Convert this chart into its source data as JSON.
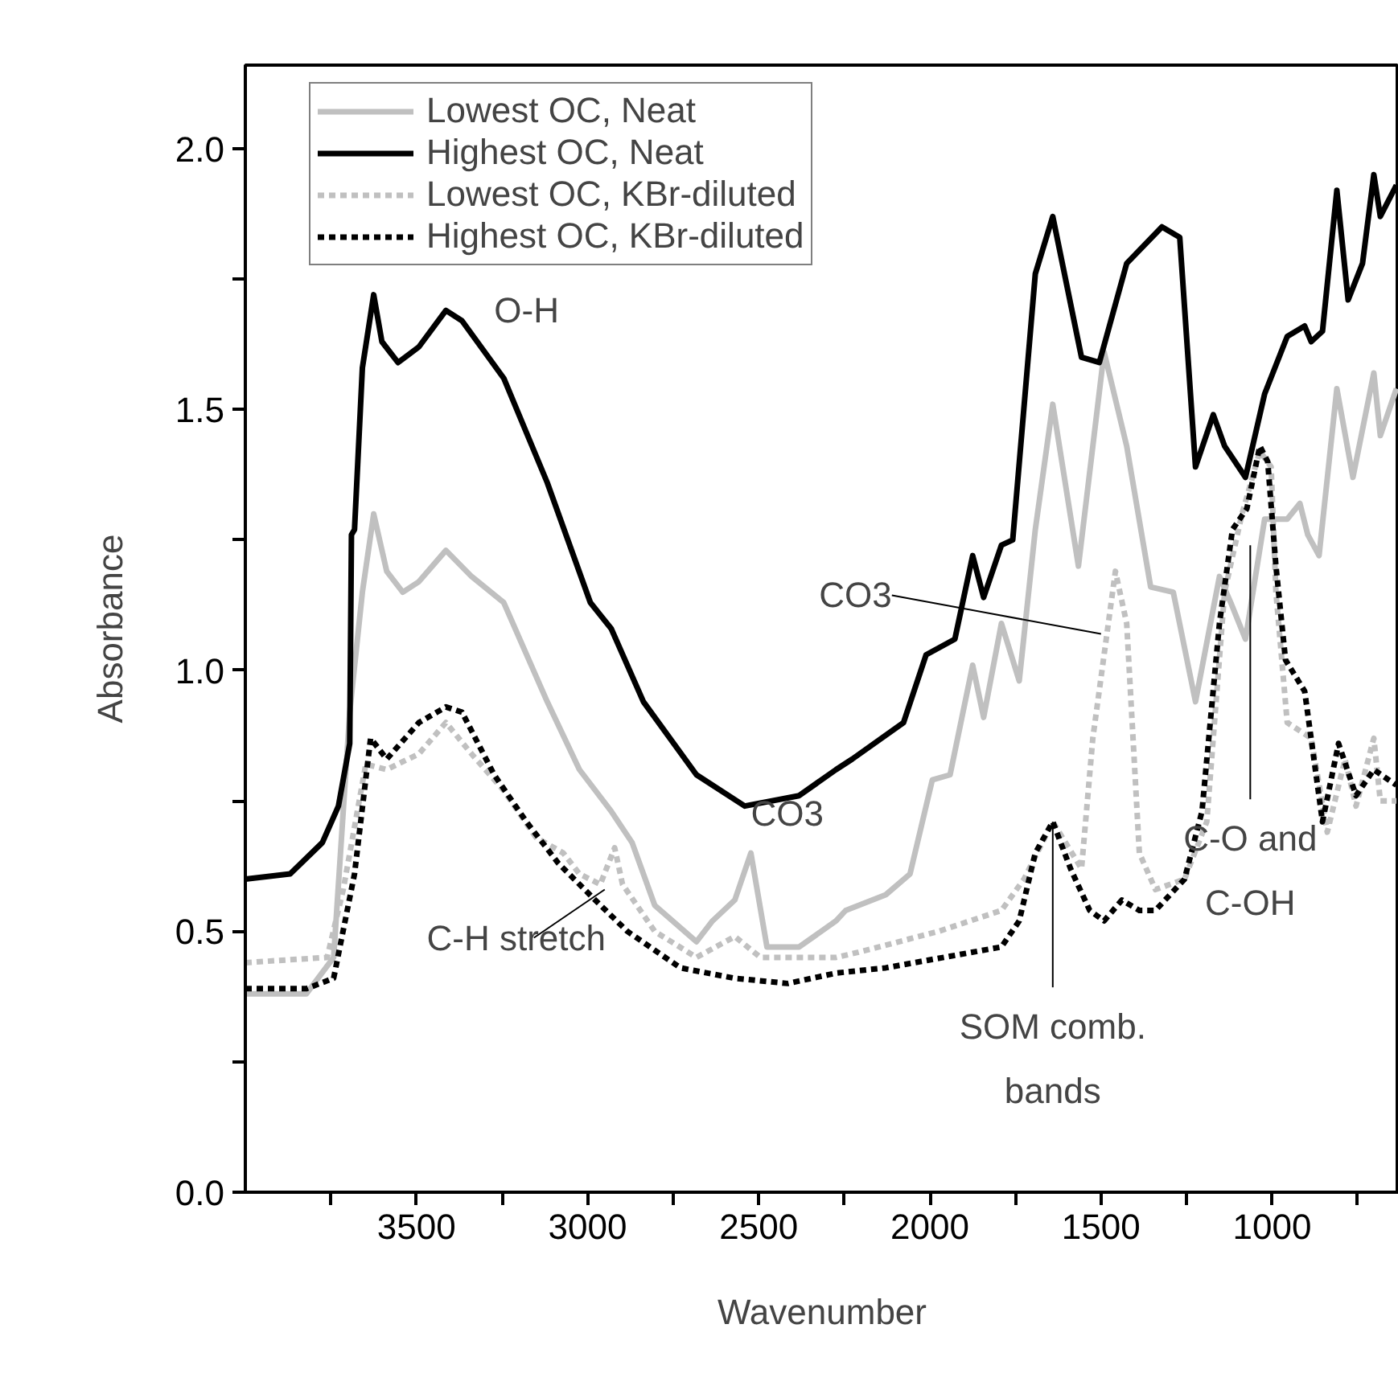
{
  "chart_data": {
    "type": "line",
    "xlabel": "Wavenumber",
    "ylabel": "Absorbance",
    "xlim": [
      4000,
      630
    ],
    "ylim": [
      0,
      2.16
    ],
    "xticks": [
      {
        "value": 3750,
        "label": null
      },
      3500,
      {
        "value": 3250,
        "label": null
      },
      3000,
      {
        "value": 2750,
        "label": null
      },
      2500,
      {
        "value": 2250,
        "label": null
      },
      2000,
      {
        "value": 1750,
        "label": null
      },
      1500,
      {
        "value": 1250,
        "label": null
      },
      1000,
      {
        "value": 750,
        "label": null
      }
    ],
    "yticks": [
      {
        "value": 0,
        "label": "0.0"
      },
      {
        "value": 0.25,
        "label": null
      },
      {
        "value": 0.5,
        "label": "0.5"
      },
      {
        "value": 0.75,
        "label": null
      },
      {
        "value": 1.0,
        "label": "1.0"
      },
      {
        "value": 1.25,
        "label": null
      },
      {
        "value": 1.5,
        "label": "1.5"
      },
      {
        "value": 1.75,
        "label": null
      },
      {
        "value": 2.0,
        "label": "2.0"
      }
    ],
    "grid": false,
    "legend": "top left",
    "series": [
      {
        "name": "Lowest OC, Neat",
        "color": "#c0c0c0",
        "line_style": "solid",
        "x": [
          4000,
          3822,
          3742,
          3695,
          3658,
          3625,
          3587,
          3540,
          3493,
          3414,
          3339,
          3245,
          3118,
          3024,
          2931,
          2870,
          2804,
          2682,
          2635,
          2570,
          2523,
          2476,
          2382,
          2274,
          2246,
          2129,
          2058,
          1993,
          1941,
          1875,
          1843,
          1791,
          1739,
          1692,
          1641,
          1566,
          1491,
          1425,
          1355,
          1289,
          1224,
          1154,
          1121,
          1078,
          1022,
          956,
          919,
          896,
          863,
          811,
          764,
          703,
          684,
          637
        ],
        "values": [
          0.38,
          0.38,
          0.45,
          0.92,
          1.15,
          1.3,
          1.19,
          1.15,
          1.17,
          1.23,
          1.18,
          1.13,
          0.94,
          0.81,
          0.73,
          0.67,
          0.55,
          0.48,
          0.52,
          0.56,
          0.65,
          0.47,
          0.47,
          0.52,
          0.54,
          0.57,
          0.61,
          0.79,
          0.8,
          1.01,
          0.91,
          1.09,
          0.98,
          1.27,
          1.51,
          1.2,
          1.61,
          1.43,
          1.16,
          1.15,
          0.94,
          1.18,
          1.13,
          1.06,
          1.29,
          1.29,
          1.32,
          1.26,
          1.22,
          1.54,
          1.37,
          1.57,
          1.45,
          1.54
        ]
      },
      {
        "name": "Highest OC, Neat",
        "color": "#000000",
        "line_style": "solid",
        "x": [
          4000,
          3869,
          3775,
          3728,
          3695,
          3690,
          3681,
          3658,
          3625,
          3601,
          3554,
          3493,
          3414,
          3367,
          3245,
          3118,
          2992,
          2931,
          2837,
          2682,
          2541,
          2382,
          2274,
          2227,
          2077,
          2011,
          1927,
          1875,
          1843,
          1791,
          1758,
          1692,
          1641,
          1557,
          1505,
          1425,
          1322,
          1270,
          1224,
          1172,
          1139,
          1078,
          1022,
          956,
          905,
          886,
          853,
          811,
          778,
          736,
          703,
          684,
          637
        ],
        "values": [
          0.6,
          0.61,
          0.67,
          0.74,
          0.86,
          1.26,
          1.27,
          1.58,
          1.72,
          1.63,
          1.59,
          1.62,
          1.69,
          1.67,
          1.56,
          1.36,
          1.13,
          1.08,
          0.94,
          0.8,
          0.74,
          0.76,
          0.81,
          0.83,
          0.9,
          1.03,
          1.06,
          1.22,
          1.14,
          1.24,
          1.25,
          1.76,
          1.87,
          1.6,
          1.59,
          1.78,
          1.85,
          1.83,
          1.39,
          1.49,
          1.43,
          1.37,
          1.53,
          1.64,
          1.66,
          1.63,
          1.65,
          1.92,
          1.71,
          1.78,
          1.95,
          1.87,
          1.93
        ]
      },
      {
        "name": "Lowest OC, KBr-diluted",
        "color": "#c0c0c0",
        "line_style": "dashed",
        "x": [
          4000,
          3761,
          3714,
          3648,
          3587,
          3493,
          3414,
          3339,
          3245,
          3151,
          3071,
          3024,
          2963,
          2921,
          2898,
          2804,
          2682,
          2570,
          2495,
          2274,
          2208,
          1974,
          1791,
          1725,
          1641,
          1557,
          1524,
          1458,
          1425,
          1388,
          1341,
          1256,
          1191,
          1139,
          1088,
          1036,
          1003,
          989,
          956,
          886,
          839,
          787,
          755,
          703,
          684,
          637
        ],
        "values": [
          0.44,
          0.45,
          0.58,
          0.82,
          0.81,
          0.84,
          0.9,
          0.84,
          0.77,
          0.68,
          0.65,
          0.61,
          0.59,
          0.66,
          0.59,
          0.5,
          0.45,
          0.49,
          0.45,
          0.45,
          0.46,
          0.5,
          0.54,
          0.6,
          0.71,
          0.62,
          0.87,
          1.19,
          1.09,
          0.65,
          0.58,
          0.6,
          0.71,
          1.15,
          1.3,
          1.42,
          1.39,
          1.15,
          0.9,
          0.87,
          0.69,
          0.83,
          0.74,
          0.87,
          0.75,
          0.75
        ]
      },
      {
        "name": "Highest OC, KBr-diluted",
        "color": "#000000",
        "line_style": "dashed",
        "x": [
          4000,
          3822,
          3742,
          3681,
          3634,
          3587,
          3493,
          3414,
          3367,
          3273,
          3179,
          3085,
          2978,
          2884,
          2729,
          2570,
          2415,
          2274,
          2129,
          1791,
          1739,
          1692,
          1641,
          1589,
          1533,
          1491,
          1439,
          1388,
          1341,
          1256,
          1205,
          1154,
          1116,
          1074,
          1036,
          1013,
          989,
          961,
          905,
          853,
          806,
          755,
          703,
          637
        ],
        "values": [
          0.39,
          0.39,
          0.41,
          0.61,
          0.87,
          0.83,
          0.9,
          0.93,
          0.92,
          0.8,
          0.71,
          0.63,
          0.56,
          0.5,
          0.43,
          0.41,
          0.4,
          0.42,
          0.43,
          0.47,
          0.52,
          0.65,
          0.71,
          0.62,
          0.54,
          0.52,
          0.56,
          0.54,
          0.54,
          0.6,
          0.73,
          1.09,
          1.27,
          1.31,
          1.43,
          1.4,
          1.2,
          1.02,
          0.96,
          0.71,
          0.86,
          0.76,
          0.81,
          0.78
        ]
      }
    ],
    "annotations": [
      {
        "text": "O-H",
        "x": 3414,
        "y": 1.69
      },
      {
        "text": "CO3",
        "x": 2523,
        "y": 0.65
      },
      {
        "text": "CO3",
        "x": 1500,
        "y": 1.07
      },
      {
        "text": "C-H stretch",
        "x": 2950,
        "y": 0.58
      },
      {
        "text": "SOM comb.\nbands",
        "x": 1641,
        "y": 0.71
      },
      {
        "text": "C-O and\nC-OH",
        "x": 1064,
        "y": 1.24
      }
    ]
  }
}
